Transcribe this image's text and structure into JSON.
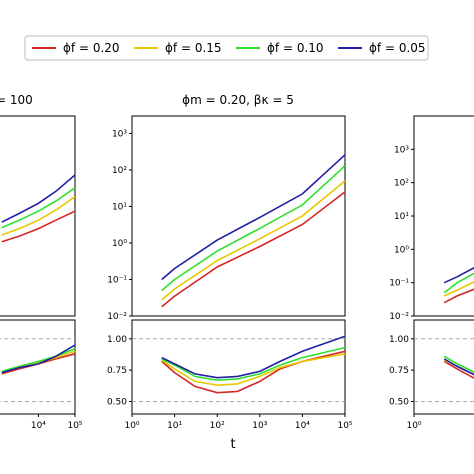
{
  "legend": {
    "items": [
      {
        "label": "ϕf = 0.20",
        "color": "#d62728"
      },
      {
        "label": "ϕf = 0.15",
        "color": "#e8c800"
      },
      {
        "label": "ϕf = 0.10",
        "color": "#2ee02e"
      },
      {
        "label": "ϕf = 0.05",
        "color": "#1f1fa8"
      }
    ]
  },
  "chart_data": [
    {
      "panel": "left-top",
      "type": "line",
      "title": "= 100",
      "scale": "log-log",
      "xlim": [
        1,
        100000
      ],
      "ylim": [
        0.01,
        10000
      ],
      "yticks_visible": false,
      "series": [
        {
          "color": "#d62728",
          "x": [
            1000,
            3000,
            10000,
            30000,
            100000
          ],
          "y": [
            1.7,
            2.5,
            4.2,
            7.5,
            14
          ]
        },
        {
          "color": "#e8c800",
          "x": [
            1000,
            3000,
            10000,
            30000,
            100000
          ],
          "y": [
            2.7,
            4.2,
            7.5,
            15,
            38
          ]
        },
        {
          "color": "#2ee02e",
          "x": [
            1000,
            3000,
            10000,
            30000,
            100000
          ],
          "y": [
            4.5,
            7.5,
            14,
            28,
            70
          ]
        },
        {
          "color": "#1f1fa8",
          "x": [
            1000,
            3000,
            10000,
            30000,
            100000
          ],
          "y": [
            6.5,
            12,
            24,
            55,
            170
          ]
        }
      ]
    },
    {
      "panel": "center-top",
      "type": "line",
      "title": "ϕm = 0.20,  βκ = 5",
      "scale": "log-log",
      "xlim": [
        1,
        100000
      ],
      "ylim": [
        0.01,
        3000
      ],
      "yticks": [
        "10⁻²",
        "10⁻¹",
        "10⁰",
        "10¹",
        "10²",
        "10³"
      ],
      "series": [
        {
          "color": "#d62728",
          "x": [
            5,
            10,
            100,
            1000,
            10000,
            100000
          ],
          "y": [
            0.018,
            0.035,
            0.22,
            0.8,
            3.2,
            25
          ]
        },
        {
          "color": "#e8c800",
          "x": [
            5,
            10,
            100,
            1000,
            10000,
            100000
          ],
          "y": [
            0.028,
            0.055,
            0.33,
            1.3,
            5.5,
            50
          ]
        },
        {
          "color": "#2ee02e",
          "x": [
            5,
            10,
            100,
            1000,
            10000,
            100000
          ],
          "y": [
            0.05,
            0.1,
            0.6,
            2.5,
            11,
            130
          ]
        },
        {
          "color": "#1f1fa8",
          "x": [
            5,
            10,
            100,
            1000,
            10000,
            100000
          ],
          "y": [
            0.1,
            0.2,
            1.2,
            5,
            22,
            260
          ]
        }
      ]
    },
    {
      "panel": "right-top",
      "type": "line",
      "scale": "log-log",
      "xlim": [
        1,
        100000
      ],
      "ylim": [
        0.01,
        10000
      ],
      "yticks": [
        "10⁻²",
        "10⁻¹",
        "10⁰",
        "10¹",
        "10²",
        "10³"
      ],
      "series": [
        {
          "color": "#d62728",
          "x": [
            5,
            10,
            30
          ],
          "y": [
            0.025,
            0.04,
            0.07
          ]
        },
        {
          "color": "#e8c800",
          "x": [
            5,
            10,
            30
          ],
          "y": [
            0.04,
            0.06,
            0.12
          ]
        },
        {
          "color": "#2ee02e",
          "x": [
            5,
            10,
            30
          ],
          "y": [
            0.05,
            0.1,
            0.22
          ]
        },
        {
          "color": "#1f1fa8",
          "x": [
            5,
            10,
            30
          ],
          "y": [
            0.1,
            0.15,
            0.32
          ]
        }
      ]
    },
    {
      "panel": "left-bottom",
      "type": "line",
      "scale": "log-x",
      "xlim": [
        1,
        100000
      ],
      "ylim": [
        0.4,
        1.15
      ],
      "xticks": [
        "10⁴",
        "10⁵"
      ],
      "series": [
        {
          "color": "#d62728",
          "x": [
            1000,
            3000,
            10000,
            30000,
            100000
          ],
          "y": [
            0.72,
            0.76,
            0.8,
            0.84,
            0.88
          ]
        },
        {
          "color": "#e8c800",
          "x": [
            1000,
            3000,
            10000,
            30000,
            100000
          ],
          "y": [
            0.73,
            0.77,
            0.81,
            0.85,
            0.9
          ]
        },
        {
          "color": "#2ee02e",
          "x": [
            1000,
            3000,
            10000,
            30000,
            100000
          ],
          "y": [
            0.74,
            0.78,
            0.82,
            0.86,
            0.92
          ]
        },
        {
          "color": "#1f1fa8",
          "x": [
            1000,
            3000,
            10000,
            30000,
            100000
          ],
          "y": [
            0.73,
            0.77,
            0.8,
            0.86,
            0.95
          ]
        }
      ]
    },
    {
      "panel": "center-bottom",
      "type": "line",
      "scale": "log-x",
      "xlabel": "t",
      "xlim": [
        1,
        100000
      ],
      "ylim": [
        0.4,
        1.15
      ],
      "yticks": [
        "0.50",
        "0.75",
        "1.00"
      ],
      "xticks": [
        "10⁰",
        "10¹",
        "10²",
        "10³",
        "10⁴",
        "10⁵"
      ],
      "series": [
        {
          "color": "#d62728",
          "x": [
            5,
            10,
            30,
            100,
            300,
            1000,
            3000,
            10000,
            100000
          ],
          "y": [
            0.82,
            0.73,
            0.62,
            0.57,
            0.58,
            0.66,
            0.76,
            0.82,
            0.9
          ]
        },
        {
          "color": "#e8c800",
          "x": [
            5,
            10,
            30,
            100,
            300,
            1000,
            3000,
            10000,
            100000
          ],
          "y": [
            0.83,
            0.76,
            0.66,
            0.63,
            0.64,
            0.7,
            0.77,
            0.82,
            0.88
          ]
        },
        {
          "color": "#2ee02e",
          "x": [
            5,
            10,
            30,
            100,
            300,
            1000,
            3000,
            10000,
            100000
          ],
          "y": [
            0.84,
            0.79,
            0.7,
            0.67,
            0.68,
            0.72,
            0.79,
            0.85,
            0.93
          ]
        },
        {
          "color": "#1f1fa8",
          "x": [
            5,
            10,
            30,
            100,
            300,
            1000,
            3000,
            10000,
            100000
          ],
          "y": [
            0.85,
            0.8,
            0.72,
            0.69,
            0.7,
            0.74,
            0.82,
            0.9,
            1.02
          ]
        }
      ]
    },
    {
      "panel": "right-bottom",
      "type": "line",
      "scale": "log-x",
      "xlim": [
        1,
        100000
      ],
      "ylim": [
        0.4,
        1.15
      ],
      "yticks": [
        "0.50",
        "0.75",
        "1.00"
      ],
      "xticks": [
        "10⁰"
      ],
      "series": [
        {
          "color": "#d62728",
          "x": [
            5,
            10,
            30
          ],
          "y": [
            0.82,
            0.76,
            0.67
          ]
        },
        {
          "color": "#e8c800",
          "x": [
            5,
            10,
            30
          ],
          "y": [
            0.83,
            0.78,
            0.7
          ]
        },
        {
          "color": "#2ee02e",
          "x": [
            5,
            10,
            30
          ],
          "y": [
            0.86,
            0.8,
            0.72
          ]
        },
        {
          "color": "#1f1fa8",
          "x": [
            5,
            10,
            30
          ],
          "y": [
            0.84,
            0.78,
            0.7
          ]
        }
      ]
    }
  ]
}
